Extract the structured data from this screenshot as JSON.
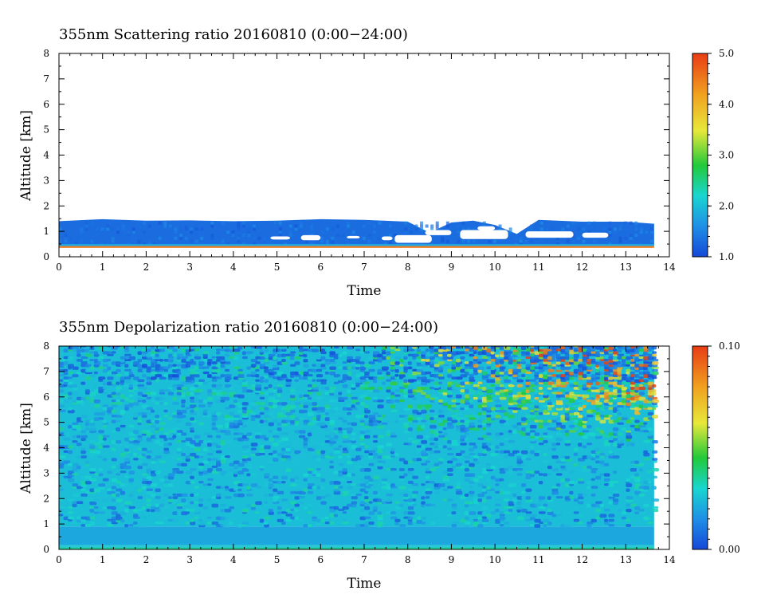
{
  "chart_data": [
    {
      "type": "heatmap",
      "title": "355nm Scattering ratio  20160810 (0:00−24:00)",
      "xlabel": "Time",
      "ylabel": "Altitude [km]",
      "xlim": [
        0,
        14
      ],
      "ylim": [
        0,
        8
      ],
      "xticks": [
        "0",
        "1",
        "2",
        "3",
        "4",
        "5",
        "6",
        "7",
        "8",
        "9",
        "10",
        "11",
        "12",
        "13",
        "14"
      ],
      "yticks": [
        "0",
        "1",
        "2",
        "3",
        "4",
        "5",
        "6",
        "7",
        "8"
      ],
      "colorbar": {
        "range": [
          1.0,
          5.0
        ],
        "ticks": [
          "1.0",
          "2.0",
          "3.0",
          "4.0",
          "5.0"
        ],
        "colors": [
          "#1448d8",
          "#1f8fe6",
          "#19d6d0",
          "#22c93a",
          "#e8e83a",
          "#f0a020",
          "#e83c14"
        ]
      },
      "data_extent_time": [
        0,
        13.65
      ],
      "layers": [
        {
          "name": "",
          "alt_bottom": 0.35,
          "alt_top": 0.42,
          "value": 4.5
        },
        {
          "name": "",
          "alt_bottom": 0.42,
          "alt_top": 1.45,
          "value": 1.3
        }
      ],
      "top_profile": [
        [
          0,
          1.4
        ],
        [
          1,
          1.48
        ],
        [
          2,
          1.42
        ],
        [
          3,
          1.43
        ],
        [
          4,
          1.4
        ],
        [
          5,
          1.42
        ],
        [
          6,
          1.48
        ],
        [
          7,
          1.45
        ],
        [
          8,
          1.38
        ],
        [
          8.5,
          0.95
        ],
        [
          9,
          1.35
        ],
        [
          9.5,
          1.42
        ],
        [
          10,
          1.25
        ],
        [
          10.5,
          0.9
        ],
        [
          11,
          1.45
        ],
        [
          12,
          1.38
        ],
        [
          13,
          1.38
        ],
        [
          13.65,
          1.3
        ]
      ],
      "gaps": [
        {
          "t0": 4.85,
          "t1": 5.3,
          "a0": 0.68,
          "a1": 0.8
        },
        {
          "t0": 5.55,
          "t1": 6.0,
          "a0": 0.65,
          "a1": 0.85
        },
        {
          "t0": 6.6,
          "t1": 6.9,
          "a0": 0.72,
          "a1": 0.82
        },
        {
          "t0": 7.4,
          "t1": 7.65,
          "a0": 0.65,
          "a1": 0.8
        },
        {
          "t0": 7.7,
          "t1": 8.55,
          "a0": 0.55,
          "a1": 0.85
        },
        {
          "t0": 8.4,
          "t1": 9.0,
          "a0": 0.85,
          "a1": 1.05
        },
        {
          "t0": 9.2,
          "t1": 10.3,
          "a0": 0.7,
          "a1": 1.05
        },
        {
          "t0": 9.6,
          "t1": 10.0,
          "a0": 1.05,
          "a1": 1.2
        },
        {
          "t0": 10.7,
          "t1": 11.8,
          "a0": 0.75,
          "a1": 1.0
        },
        {
          "t0": 12.0,
          "t1": 12.6,
          "a0": 0.75,
          "a1": 0.95
        }
      ]
    },
    {
      "type": "heatmap",
      "title": "355nm Depolarization ratio  20160810 (0:00−24:00)",
      "xlabel": "Time",
      "ylabel": "Altitude [km]",
      "xlim": [
        0,
        14
      ],
      "ylim": [
        0,
        8
      ],
      "xticks": [
        "0",
        "1",
        "2",
        "3",
        "4",
        "5",
        "6",
        "7",
        "8",
        "9",
        "10",
        "11",
        "12",
        "13",
        "14"
      ],
      "yticks": [
        "0",
        "1",
        "2",
        "3",
        "4",
        "5",
        "6",
        "7",
        "8"
      ],
      "colorbar": {
        "range": [
          0.0,
          0.1
        ],
        "ticks": [
          "0.00",
          "0.10"
        ],
        "colors": [
          "#1448d8",
          "#1f8fe6",
          "#19d6d0",
          "#22c93a",
          "#e8e83a",
          "#f0a020",
          "#e83c14"
        ]
      },
      "data_extent_time": [
        0,
        13.65
      ],
      "layers": [
        {
          "name": "",
          "alt_bottom": 0.0,
          "alt_top": 0.15,
          "value": 0.035
        },
        {
          "name": "",
          "alt_bottom": 0.15,
          "alt_top": 0.9,
          "value": 0.02
        },
        {
          "name": "",
          "alt_bottom": 0.9,
          "alt_top": 8.0,
          "value": 0.025
        }
      ],
      "noisy_region": {
        "t_start": 6.5,
        "alt_start": 4.0,
        "peak_value": 0.1
      }
    }
  ]
}
